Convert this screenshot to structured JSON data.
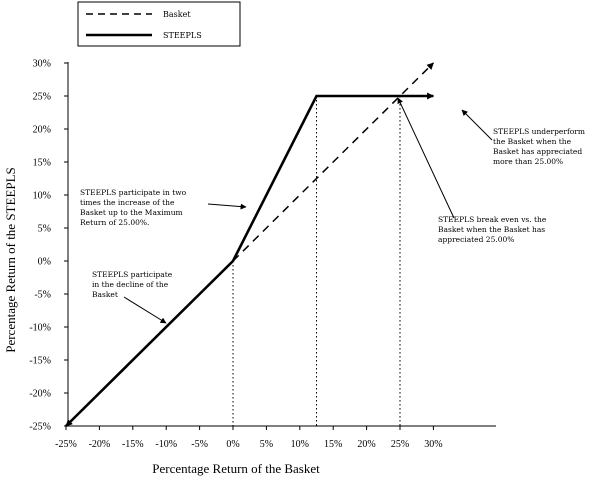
{
  "chart_data": {
    "type": "line",
    "xlabel": "Percentage Return of the Basket",
    "ylabel": "Percentage Return of the STEEPLS",
    "xlim": [
      -25,
      30
    ],
    "ylim": [
      -25,
      30
    ],
    "x_ticks": [
      "-25%",
      "-20%",
      "-15%",
      "-10%",
      "-5%",
      "0%",
      "5%",
      "10%",
      "15%",
      "20%",
      "25%",
      "30%"
    ],
    "x_tick_values": [
      -25,
      -20,
      -15,
      -10,
      -5,
      0,
      5,
      10,
      15,
      20,
      25,
      30
    ],
    "y_ticks": [
      "30%",
      "25%",
      "20%",
      "15%",
      "10%",
      "5%",
      "0%",
      "-5%",
      "-10%",
      "-15%",
      "-20%",
      "-25%"
    ],
    "y_tick_values": [
      30,
      25,
      20,
      15,
      10,
      5,
      0,
      -5,
      -10,
      -15,
      -20,
      -25
    ],
    "grid": false,
    "legend": "top-left",
    "series": [
      {
        "name": "Basket",
        "style": "dashed",
        "x": [
          0,
          30
        ],
        "y": [
          0,
          30
        ]
      },
      {
        "name": "STEEPLS",
        "style": "solid",
        "x": [
          -25,
          0,
          12.5,
          30
        ],
        "y": [
          -25,
          0,
          25,
          25
        ]
      }
    ],
    "reference_lines_x": [
      0,
      12.5,
      25
    ],
    "annotations": [
      {
        "lines": [
          "STEEPLS participate in two",
          "times the increase of the",
          "Basket up to the Maximum",
          "Return of 25.00%."
        ]
      },
      {
        "lines": [
          "STEEPLS participate",
          "in the decline of the",
          "Basket"
        ]
      },
      {
        "lines": [
          "STEEPLS underperform",
          "the Basket when the",
          "Basket has appreciated",
          "more than 25.00%"
        ]
      },
      {
        "lines": [
          "STEEPLS break even vs. the",
          "Basket when the Basket has",
          "appreciated 25.00%"
        ]
      }
    ]
  }
}
